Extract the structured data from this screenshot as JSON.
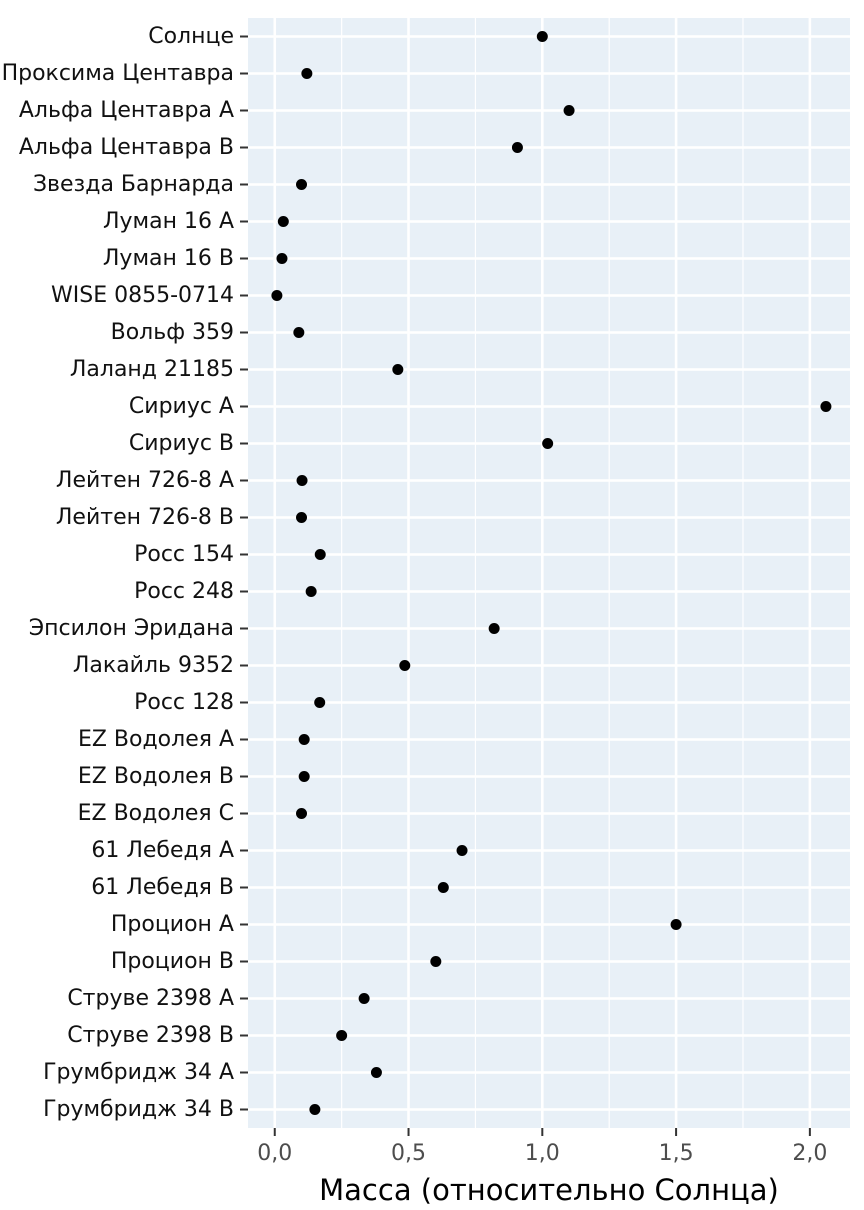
{
  "chart_data": {
    "type": "scatter",
    "title": "",
    "xlabel": "Масса (относительно Солнца)",
    "ylabel": "",
    "xlim": [
      -0.1,
      2.15
    ],
    "x_ticks": [
      0.0,
      0.5,
      1.0,
      1.5,
      2.0
    ],
    "x_tick_labels": [
      "0,0",
      "0,5",
      "1,0",
      "1,5",
      "2,0"
    ],
    "grid": true,
    "legend": "none",
    "colors": {
      "panel": "#e8f0f7",
      "grid": "#ffffff",
      "point": "#000000"
    },
    "points": [
      {
        "label": "Солнце",
        "x": 1.0
      },
      {
        "label": "Проксима Центавра",
        "x": 0.12
      },
      {
        "label": "Альфа Центавра A",
        "x": 1.1
      },
      {
        "label": "Альфа Центавра B",
        "x": 0.907
      },
      {
        "label": "Звезда Барнарда",
        "x": 0.1
      },
      {
        "label": "Луман 16 A",
        "x": 0.032
      },
      {
        "label": "Луман 16 B",
        "x": 0.027
      },
      {
        "label": "WISE 0855-0714",
        "x": 0.008
      },
      {
        "label": "Вольф 359",
        "x": 0.09
      },
      {
        "label": "Лаланд 21185",
        "x": 0.46
      },
      {
        "label": "Сириус A",
        "x": 2.06
      },
      {
        "label": "Сириус B",
        "x": 1.02
      },
      {
        "label": "Лейтен 726-8 A",
        "x": 0.102
      },
      {
        "label": "Лейтен 726-8 B",
        "x": 0.1
      },
      {
        "label": "Росс 154",
        "x": 0.17
      },
      {
        "label": "Росс 248",
        "x": 0.136
      },
      {
        "label": "Эпсилон Эридана",
        "x": 0.82
      },
      {
        "label": "Лакайль 9352",
        "x": 0.486
      },
      {
        "label": "Росс 128",
        "x": 0.168
      },
      {
        "label": "EZ Водолея A",
        "x": 0.11
      },
      {
        "label": "EZ Водолея B",
        "x": 0.11
      },
      {
        "label": "EZ Водолея C",
        "x": 0.1
      },
      {
        "label": "61 Лебедя A",
        "x": 0.7
      },
      {
        "label": "61 Лебедя B",
        "x": 0.63
      },
      {
        "label": "Процион A",
        "x": 1.5
      },
      {
        "label": "Процион B",
        "x": 0.602
      },
      {
        "label": "Струве 2398 A",
        "x": 0.334
      },
      {
        "label": "Струве 2398 B",
        "x": 0.25
      },
      {
        "label": "Грумбридж 34 A",
        "x": 0.38
      },
      {
        "label": "Грумбридж 34 B",
        "x": 0.15
      }
    ]
  }
}
